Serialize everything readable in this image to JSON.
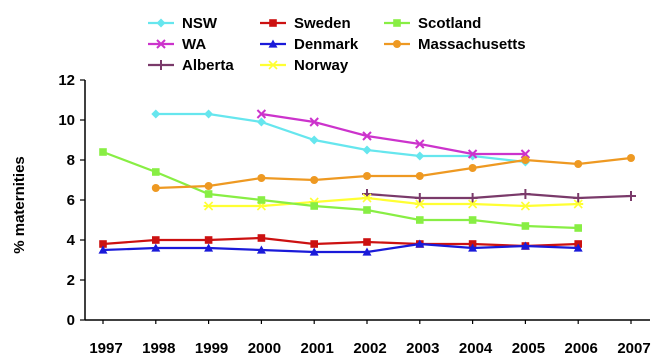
{
  "chart_data": {
    "type": "line",
    "title": "",
    "xlabel": "",
    "ylabel": "% maternities",
    "x": [
      "1997",
      "1998",
      "1999",
      "2000",
      "2001",
      "2002",
      "2003",
      "2004",
      "2005",
      "2006",
      "2007"
    ],
    "ylim": [
      0,
      12
    ],
    "yticks": [
      "0",
      "2",
      "4",
      "6",
      "8",
      "10",
      "12"
    ],
    "grid": false,
    "legend_position": "top",
    "series": [
      {
        "name": "NSW",
        "color": "#66e6ee",
        "marker": "diamond",
        "values": [
          null,
          10.3,
          10.3,
          9.9,
          9.0,
          8.5,
          8.2,
          8.2,
          7.9,
          null,
          null
        ]
      },
      {
        "name": "WA",
        "color": "#cc33cc",
        "marker": "x",
        "values": [
          null,
          null,
          null,
          10.3,
          9.9,
          9.2,
          8.8,
          8.3,
          8.3,
          null,
          null
        ]
      },
      {
        "name": "Alberta",
        "color": "#7a3a6a",
        "marker": "plus",
        "values": [
          null,
          null,
          null,
          null,
          null,
          6.3,
          6.1,
          6.1,
          6.3,
          6.1,
          6.2
        ]
      },
      {
        "name": "Sweden",
        "color": "#cc1111",
        "marker": "square",
        "values": [
          3.8,
          4.0,
          4.0,
          4.1,
          3.8,
          3.9,
          3.8,
          3.8,
          3.7,
          3.8,
          null
        ]
      },
      {
        "name": "Denmark",
        "color": "#1a1ad9",
        "marker": "triangle",
        "values": [
          3.5,
          3.6,
          3.6,
          3.5,
          3.4,
          3.4,
          3.8,
          3.6,
          3.7,
          3.6,
          null
        ]
      },
      {
        "name": "Norway",
        "color": "#ffff33",
        "marker": "star",
        "values": [
          null,
          null,
          5.7,
          5.7,
          5.9,
          6.1,
          5.8,
          5.8,
          5.7,
          5.8,
          null
        ]
      },
      {
        "name": "Scotland",
        "color": "#88ee44",
        "marker": "square",
        "values": [
          8.4,
          7.4,
          6.3,
          6.0,
          5.7,
          5.5,
          5.0,
          5.0,
          4.7,
          4.6,
          null
        ]
      },
      {
        "name": "Massachusetts",
        "color": "#ee9922",
        "marker": "circle",
        "values": [
          null,
          6.6,
          6.7,
          7.1,
          7.0,
          7.2,
          7.2,
          7.6,
          8.0,
          7.8,
          8.1
        ]
      }
    ]
  }
}
